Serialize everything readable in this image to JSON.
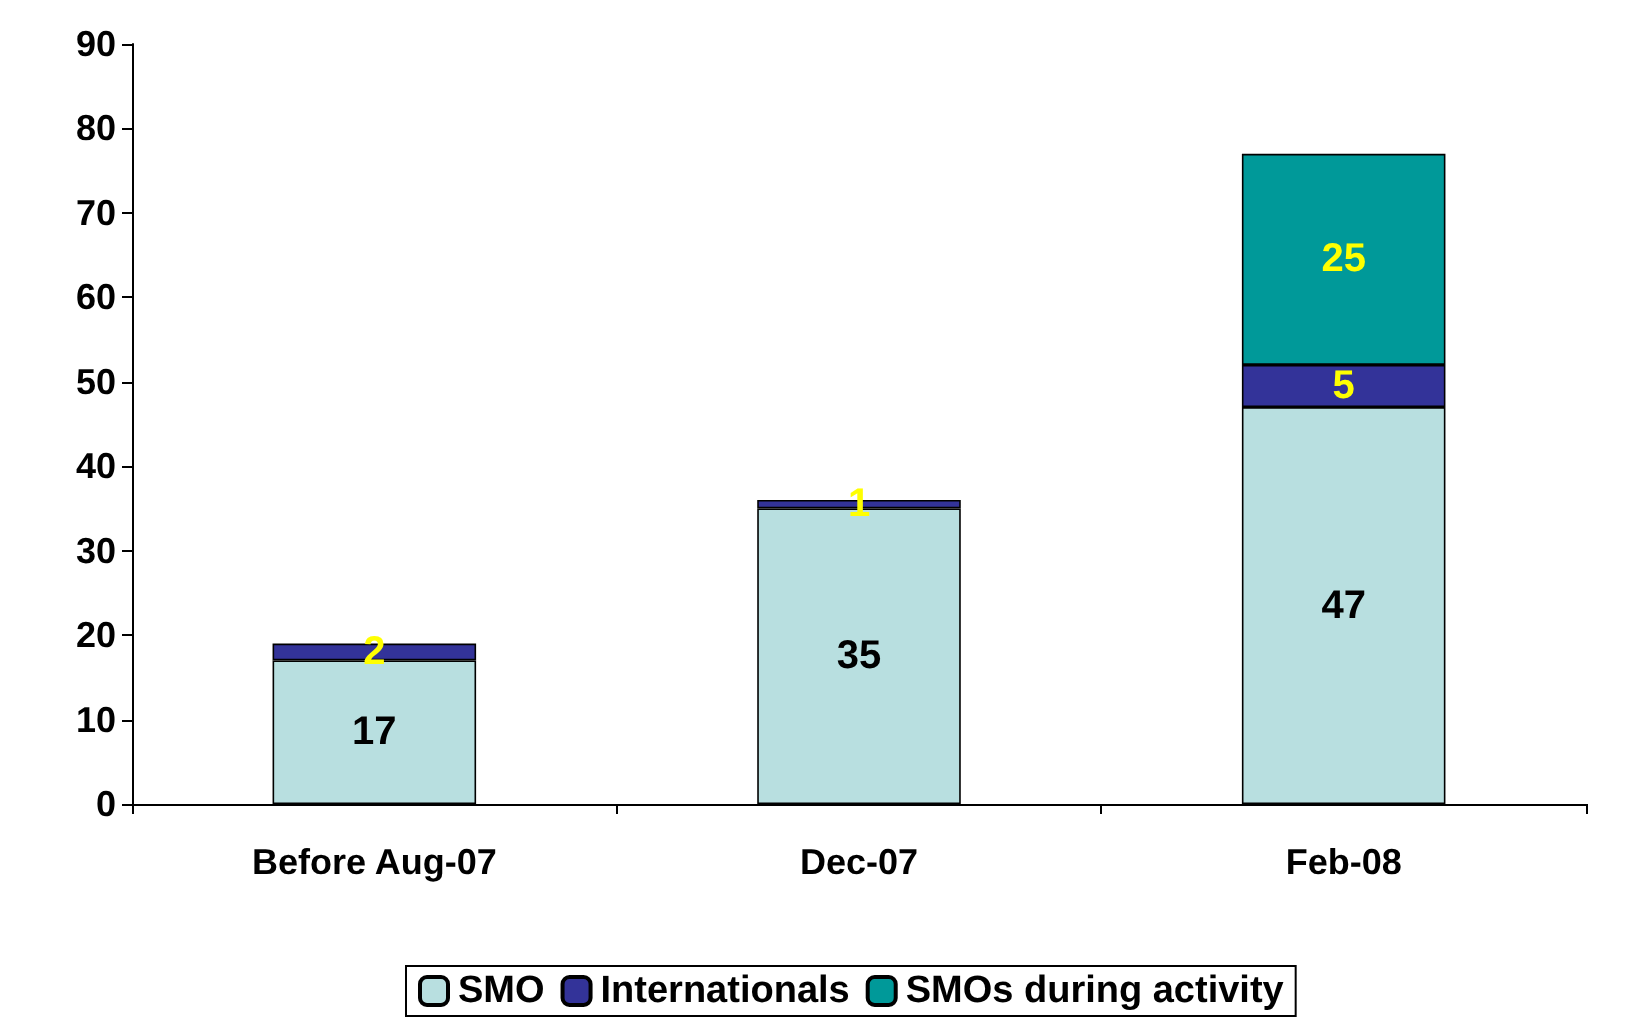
{
  "chart_data": {
    "type": "bar",
    "stacked": true,
    "categories": [
      "Before Aug-07",
      "Dec-07",
      "Feb-08"
    ],
    "series": [
      {
        "name": "SMO",
        "color": "#b8dfe0",
        "values": [
          17,
          35,
          47
        ]
      },
      {
        "name": "Internationals",
        "color": "#333399",
        "values": [
          2,
          1,
          5
        ]
      },
      {
        "name": "SMOs during activity",
        "color": "#009999",
        "values": [
          null,
          null,
          25
        ]
      }
    ],
    "ylim": [
      0,
      90
    ],
    "yticks": [
      0,
      10,
      20,
      30,
      40,
      50,
      60,
      70,
      80,
      90
    ],
    "grid": false,
    "legend": "bottom",
    "data_labels": true
  }
}
